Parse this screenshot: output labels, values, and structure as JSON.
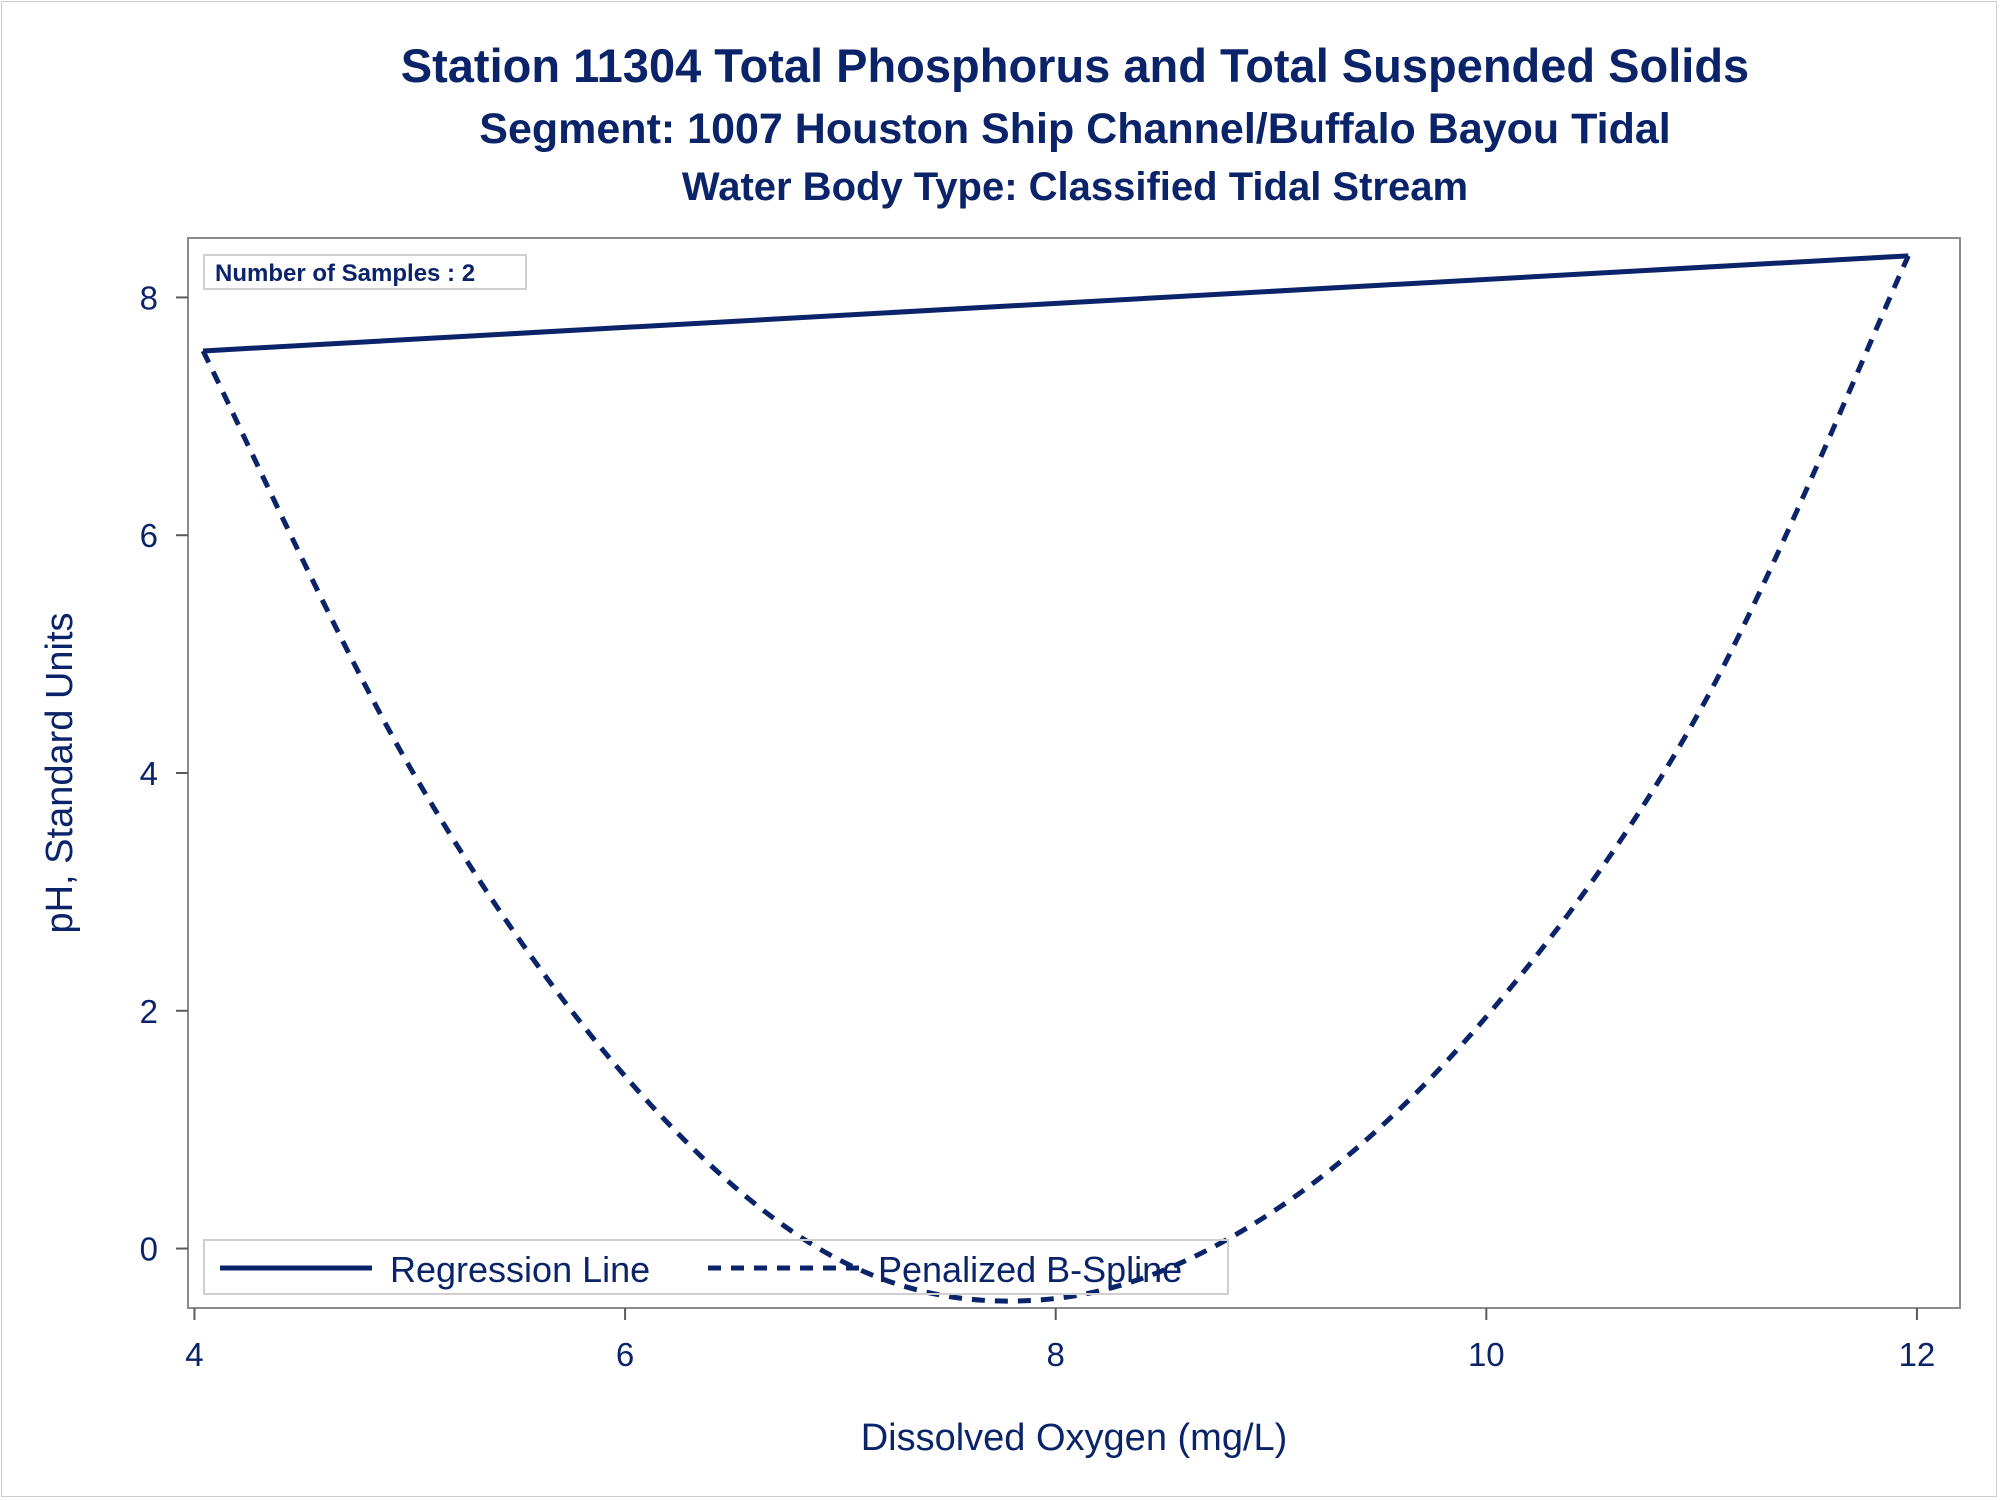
{
  "chart_data": {
    "type": "line",
    "title": "Station 11304  Total Phosphorus and Total Suspended Solids",
    "subtitle": "Segment: 1007  Houston Ship Channel/Buffalo Bayou Tidal",
    "subtitle2": "Water Body Type: Classified Tidal Stream",
    "xlabel": "Dissolved Oxygen (mg/L)",
    "ylabel": "pH, Standard Units",
    "xlim": [
      3.97,
      12.2
    ],
    "ylim": [
      -0.5,
      8.5
    ],
    "xticks": [
      4,
      6,
      8,
      10,
      12
    ],
    "yticks": [
      0,
      2,
      4,
      6,
      8
    ],
    "annotation": "Number of Samples : 2",
    "series": [
      {
        "name": "Regression Line",
        "style": "solid",
        "color": "#0a2369",
        "x": [
          4.04,
          11.96
        ],
        "y": [
          7.55,
          8.35
        ]
      },
      {
        "name": "Penalized B-Spline",
        "style": "dashed",
        "color": "#0a2369",
        "x": [
          4.04,
          5.0,
          6.0,
          7.0,
          8.0,
          9.0,
          10.0,
          11.0,
          11.96
        ],
        "y": [
          7.55,
          4.05,
          1.45,
          -0.1,
          -0.42,
          0.3,
          1.95,
          4.55,
          8.35
        ]
      }
    ],
    "legend": {
      "position": "bottom-left",
      "entries": [
        "Regression Line",
        "Penalized B-Spline"
      ]
    },
    "grid": false
  }
}
